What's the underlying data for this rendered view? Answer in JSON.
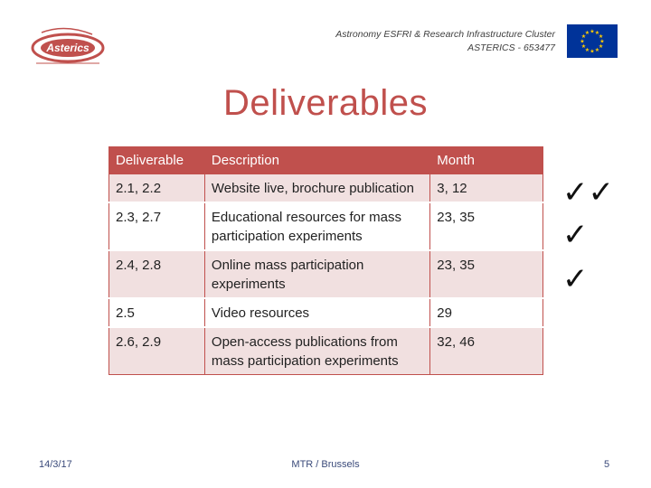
{
  "header": {
    "line1": "Astronomy ESFRI & Research Infrastructure Cluster",
    "line2": "ASTERICS - 653477"
  },
  "logo": {
    "text": "Asterics"
  },
  "title": "Deliverables",
  "table": {
    "headers": [
      "Deliverable",
      "Description",
      "Month"
    ],
    "rows": [
      {
        "deliverable": "2.1, 2.2",
        "description": "Website live, brochure publication",
        "month": "3, 12"
      },
      {
        "deliverable": "2.3, 2.7",
        "description": "Educational resources for mass participation experiments",
        "month": "23, 35"
      },
      {
        "deliverable": "2.4, 2.8",
        "description": "Online mass participation experiments",
        "month": "23, 35"
      },
      {
        "deliverable": "2.5",
        "description": "Video resources",
        "month": "29"
      },
      {
        "deliverable": "2.6, 2.9",
        "description": "Open-access publications from mass participation experiments",
        "month": "32, 46"
      }
    ]
  },
  "checks": {
    "row1": "✓✓",
    "row2": "✓",
    "row3": "✓"
  },
  "colors": {
    "accent": "#c0504d",
    "row_tint": "#f1e0e0",
    "eu_blue": "#003399",
    "eu_gold": "#ffcc00"
  },
  "footer": {
    "date": "14/3/17",
    "center": "MTR / Brussels",
    "page": "5"
  }
}
